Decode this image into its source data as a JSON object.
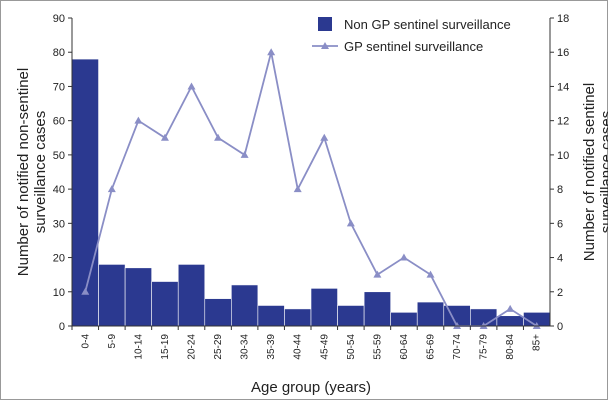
{
  "chart_data": {
    "type": "bar_line",
    "categories": [
      "0-4",
      "5-9",
      "10-14",
      "15-19",
      "20-24",
      "25-29",
      "30-34",
      "35-39",
      "40-44",
      "45-49",
      "50-54",
      "55-59",
      "60-64",
      "65-69",
      "70-74",
      "75-79",
      "80-84",
      "85+"
    ],
    "series": [
      {
        "name": "Non GP sentinel surveillance",
        "color": "#2b3990",
        "type": "bar",
        "values": [
          78,
          18,
          17,
          13,
          18,
          8,
          12,
          6,
          5,
          11,
          6,
          10,
          4,
          7,
          6,
          5,
          3,
          4
        ]
      },
      {
        "name": "GP sentinel surveillance",
        "color": "#8a8ec6",
        "type": "line",
        "axis": "y2",
        "values": [
          2,
          8,
          12,
          11,
          14,
          11,
          10,
          16,
          8,
          11,
          6,
          3,
          4,
          3,
          0,
          0,
          1,
          0
        ]
      }
    ],
    "x_label": "Age group (years)",
    "y_label": [
      "Number of notified non-sentinel",
      "surveillance cases"
    ],
    "y2_label": [
      "Number of notified sentinel",
      "surveillance cases"
    ],
    "ylim": [
      0,
      90
    ],
    "yticks": [
      0,
      10,
      20,
      30,
      40,
      50,
      60,
      70,
      80,
      90
    ],
    "y2lim": [
      0,
      18
    ],
    "y2ticks": [
      0,
      2,
      4,
      6,
      8,
      10,
      12,
      14,
      16,
      18
    ]
  }
}
